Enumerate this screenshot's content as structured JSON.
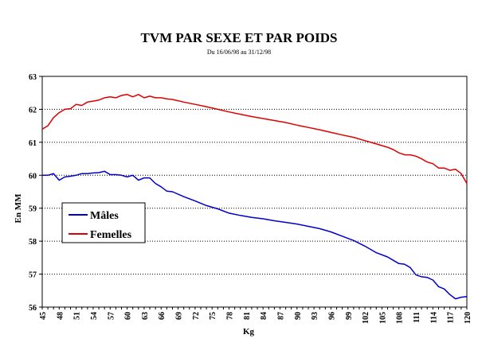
{
  "chart_data": {
    "type": "line",
    "title": "TVM PAR SEXE ET PAR POIDS",
    "subtitle": "Du 16/06/98 au 31/12/98",
    "xlabel": "Kg",
    "ylabel": "En MM",
    "xlim": [
      45,
      120
    ],
    "ylim": [
      56,
      63
    ],
    "x_ticks": [
      45,
      48,
      51,
      54,
      57,
      60,
      63,
      66,
      69,
      72,
      75,
      78,
      81,
      84,
      87,
      90,
      93,
      96,
      99,
      102,
      105,
      108,
      111,
      114,
      117,
      120
    ],
    "y_ticks": [
      56,
      57,
      58,
      59,
      60,
      61,
      62,
      63
    ],
    "grid": "horizontal dotted",
    "legend_position": "left",
    "series": [
      {
        "name": "Mâles",
        "color": "#0000cc",
        "points": [
          [
            45,
            60.0
          ],
          [
            46,
            60.0
          ],
          [
            47,
            60.05
          ],
          [
            48,
            59.85
          ],
          [
            49,
            59.95
          ],
          [
            50,
            59.97
          ],
          [
            51,
            60.0
          ],
          [
            52,
            60.05
          ],
          [
            53,
            60.05
          ],
          [
            54,
            60.07
          ],
          [
            55,
            60.08
          ],
          [
            56,
            60.12
          ],
          [
            57,
            60.02
          ],
          [
            58,
            60.02
          ],
          [
            59,
            60.0
          ],
          [
            60,
            59.95
          ],
          [
            61,
            60.0
          ],
          [
            62,
            59.85
          ],
          [
            63,
            59.92
          ],
          [
            64,
            59.92
          ],
          [
            65,
            59.75
          ],
          [
            66,
            59.65
          ],
          [
            67,
            59.52
          ],
          [
            68,
            59.5
          ],
          [
            70,
            59.35
          ],
          [
            72,
            59.22
          ],
          [
            74,
            59.08
          ],
          [
            76,
            58.98
          ],
          [
            78,
            58.85
          ],
          [
            80,
            58.78
          ],
          [
            82,
            58.72
          ],
          [
            84,
            58.68
          ],
          [
            86,
            58.62
          ],
          [
            88,
            58.57
          ],
          [
            90,
            58.52
          ],
          [
            92,
            58.45
          ],
          [
            94,
            58.38
          ],
          [
            96,
            58.28
          ],
          [
            98,
            58.15
          ],
          [
            100,
            58.02
          ],
          [
            102,
            57.85
          ],
          [
            104,
            57.65
          ],
          [
            106,
            57.52
          ],
          [
            107,
            57.42
          ],
          [
            108,
            57.32
          ],
          [
            109,
            57.3
          ],
          [
            110,
            57.2
          ],
          [
            111,
            56.98
          ],
          [
            112,
            56.92
          ],
          [
            113,
            56.9
          ],
          [
            114,
            56.82
          ],
          [
            115,
            56.62
          ],
          [
            116,
            56.55
          ],
          [
            117,
            56.38
          ],
          [
            118,
            56.25
          ],
          [
            119,
            56.3
          ],
          [
            120,
            56.32
          ]
        ]
      },
      {
        "name": "Femelles",
        "color": "#dd0000",
        "points": [
          [
            45,
            61.4
          ],
          [
            46,
            61.5
          ],
          [
            47,
            61.75
          ],
          [
            48,
            61.9
          ],
          [
            49,
            62.0
          ],
          [
            50,
            62.02
          ],
          [
            51,
            62.15
          ],
          [
            52,
            62.12
          ],
          [
            53,
            62.22
          ],
          [
            54,
            62.25
          ],
          [
            55,
            62.28
          ],
          [
            56,
            62.35
          ],
          [
            57,
            62.38
          ],
          [
            58,
            62.35
          ],
          [
            59,
            62.42
          ],
          [
            60,
            62.45
          ],
          [
            61,
            62.38
          ],
          [
            62,
            62.45
          ],
          [
            63,
            62.35
          ],
          [
            64,
            62.4
          ],
          [
            65,
            62.35
          ],
          [
            66,
            62.35
          ],
          [
            67,
            62.32
          ],
          [
            68,
            62.3
          ],
          [
            70,
            62.22
          ],
          [
            72,
            62.15
          ],
          [
            74,
            62.08
          ],
          [
            76,
            62.0
          ],
          [
            78,
            61.92
          ],
          [
            80,
            61.85
          ],
          [
            82,
            61.78
          ],
          [
            84,
            61.72
          ],
          [
            86,
            61.66
          ],
          [
            88,
            61.6
          ],
          [
            90,
            61.52
          ],
          [
            92,
            61.45
          ],
          [
            94,
            61.38
          ],
          [
            96,
            61.3
          ],
          [
            98,
            61.22
          ],
          [
            100,
            61.15
          ],
          [
            102,
            61.05
          ],
          [
            104,
            60.95
          ],
          [
            106,
            60.85
          ],
          [
            107,
            60.78
          ],
          [
            108,
            60.68
          ],
          [
            109,
            60.62
          ],
          [
            110,
            60.62
          ],
          [
            111,
            60.58
          ],
          [
            112,
            60.5
          ],
          [
            113,
            60.4
          ],
          [
            114,
            60.35
          ],
          [
            115,
            60.22
          ],
          [
            116,
            60.22
          ],
          [
            117,
            60.15
          ],
          [
            118,
            60.18
          ],
          [
            119,
            60.05
          ],
          [
            120,
            59.75
          ]
        ]
      }
    ]
  }
}
